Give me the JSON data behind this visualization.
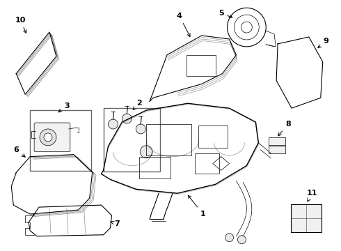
{
  "background_color": "#ffffff",
  "line_color": "#000000",
  "fig_width": 4.9,
  "fig_height": 3.6,
  "dpi": 100
}
